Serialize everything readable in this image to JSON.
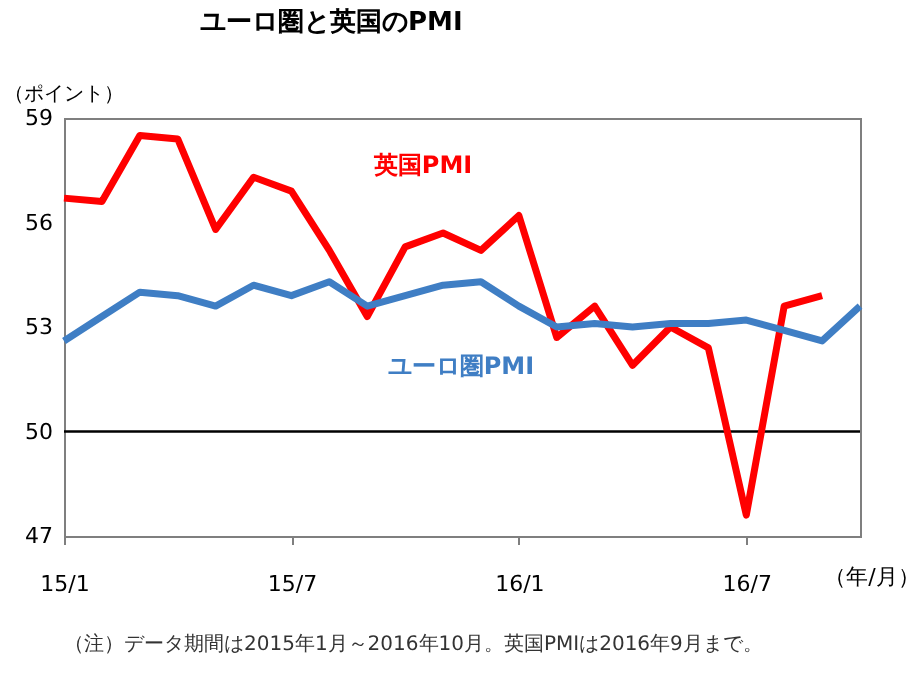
{
  "chart_data": {
    "type": "line",
    "title": "ユーロ圏と英国のPMI",
    "ylabel": "（ポイント）",
    "xlabel": "（年/月）",
    "categories": [
      "15/1",
      null,
      null,
      null,
      null,
      null,
      "15/7",
      null,
      null,
      null,
      null,
      null,
      "16/1",
      null,
      null,
      null,
      null,
      null,
      "16/7",
      null,
      null,
      null
    ],
    "ylim": [
      47,
      59
    ],
    "yticks": [
      47,
      50,
      53,
      56,
      59
    ],
    "series": [
      {
        "name": "英国PMI",
        "color": "#ff0000",
        "values": [
          56.7,
          56.6,
          58.5,
          58.4,
          55.8,
          57.3,
          56.9,
          55.2,
          53.3,
          55.3,
          55.7,
          55.2,
          56.2,
          52.7,
          53.6,
          51.9,
          53.0,
          52.4,
          47.6,
          53.6,
          53.9,
          null
        ]
      },
      {
        "name": "ユーロ圏PMI",
        "color": "#3f7ec4",
        "values": [
          52.6,
          53.3,
          54.0,
          53.9,
          53.6,
          54.2,
          53.9,
          54.3,
          53.6,
          53.9,
          54.2,
          54.3,
          53.6,
          53.0,
          53.1,
          53.0,
          53.1,
          53.1,
          53.2,
          52.9,
          52.6,
          53.6
        ]
      }
    ],
    "ref_lines": [
      {
        "axis": "y",
        "value": 50,
        "color": "#000000"
      }
    ],
    "grid": false,
    "marker": "none",
    "line_style": "solid",
    "annotations": [
      "（注）データ期間は2015年1月～2016年10月。英国PMIは2016年9月まで。"
    ]
  }
}
